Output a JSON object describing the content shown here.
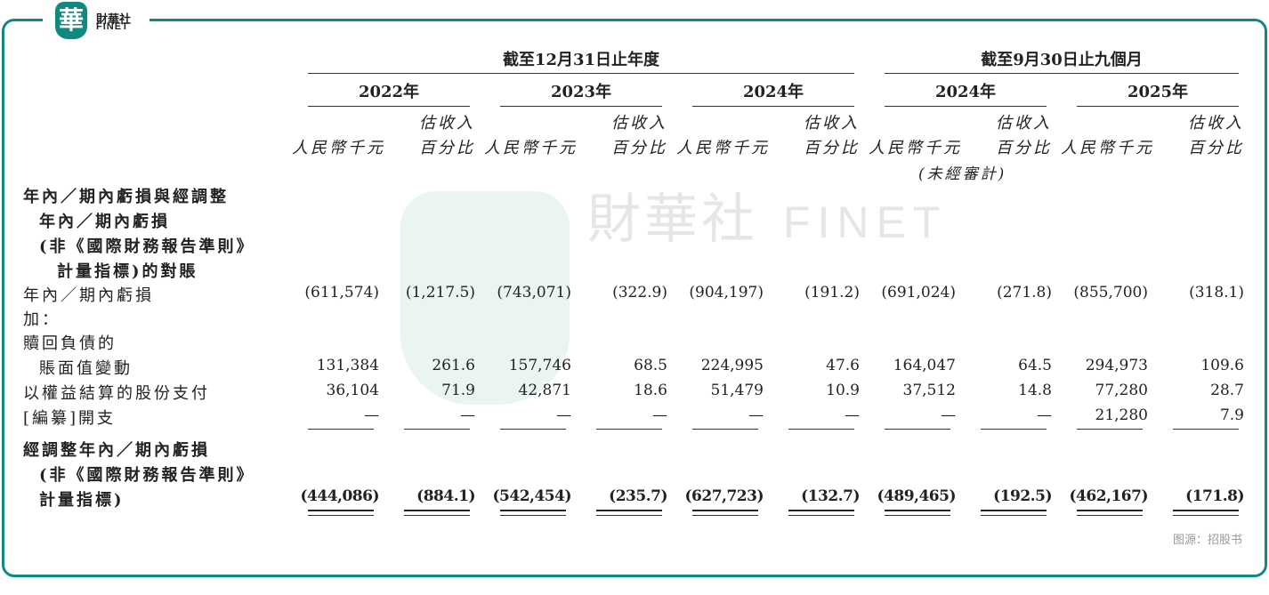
{
  "brand": {
    "logo_char": "華",
    "name_cn": "財華社",
    "name_en": "FINET",
    "accent": "#0f8a80"
  },
  "header": {
    "group1": "截至12月31日止年度",
    "group2": "截至9月30日止九個月",
    "years": [
      "2022年",
      "2023年",
      "2024年",
      "2024年",
      "2025年"
    ],
    "unit": "人民幣千元",
    "pct_line1": "估收入",
    "pct_line2": "百分比",
    "unaudited": "(未經審計)"
  },
  "section_title": [
    "年內／期內虧損與經調整",
    "年內／期內虧損",
    "(非《國際財務報告準則》",
    "計量指標)的對賬"
  ],
  "rows": [
    {
      "label": "年內／期內虧損",
      "values": [
        "(611,574)",
        "(1,217.5)",
        "(743,071)",
        "(322.9)",
        "(904,197)",
        "(191.2)",
        "(691,024)",
        "(271.8)",
        "(855,700)",
        "(318.1)"
      ]
    },
    {
      "label": "加："
    },
    {
      "label": "贖回負債的"
    },
    {
      "label": "賬面值變動",
      "values": [
        "131,384",
        "261.6",
        "157,746",
        "68.5",
        "224,995",
        "47.6",
        "164,047",
        "64.5",
        "294,973",
        "109.6"
      ]
    },
    {
      "label": "以權益結算的股份支付",
      "values": [
        "36,104",
        "71.9",
        "42,871",
        "18.6",
        "51,479",
        "10.9",
        "37,512",
        "14.8",
        "77,280",
        "28.7"
      ]
    },
    {
      "label": "[編纂]開支",
      "values": [
        "—",
        "—",
        "—",
        "—",
        "—",
        "—",
        "—",
        "—",
        "21,280",
        "7.9"
      ]
    }
  ],
  "total": {
    "label": [
      "經調整年內／期內虧損",
      "(非《國際財務報告準則》",
      "計量指標)"
    ],
    "values": [
      "(444,086)",
      "(884.1)",
      "(542,454)",
      "(235.7)",
      "(627,723)",
      "(132.7)",
      "(489,465)",
      "(192.5)",
      "(462,167)",
      "(171.8)"
    ]
  },
  "source": "图源：招股书",
  "watermark": {
    "cn": "財華社",
    "en": "FINET"
  }
}
